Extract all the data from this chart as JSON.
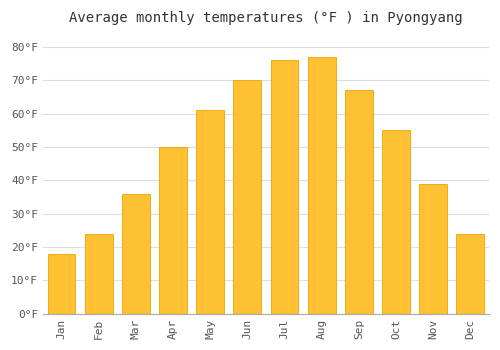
{
  "title": "Average monthly temperatures (°F ) in Pyongyang",
  "months": [
    "Jan",
    "Feb",
    "Mar",
    "Apr",
    "May",
    "Jun",
    "Jul",
    "Aug",
    "Sep",
    "Oct",
    "Nov",
    "Dec"
  ],
  "values": [
    18,
    24,
    36,
    50,
    61,
    70,
    76,
    77,
    67,
    55,
    39,
    24
  ],
  "bar_color": "#FFC133",
  "bar_edge_color": "#E8A800",
  "background_color": "#FFFFFF",
  "grid_color": "#DDDDDD",
  "ylim": [
    0,
    85
  ],
  "yticks": [
    0,
    10,
    20,
    30,
    40,
    50,
    60,
    70,
    80
  ],
  "ytick_labels": [
    "0°F",
    "10°F",
    "20°F",
    "30°F",
    "40°F",
    "50°F",
    "60°F",
    "70°F",
    "80°F"
  ],
  "title_fontsize": 10,
  "tick_fontsize": 8,
  "font_family": "monospace"
}
